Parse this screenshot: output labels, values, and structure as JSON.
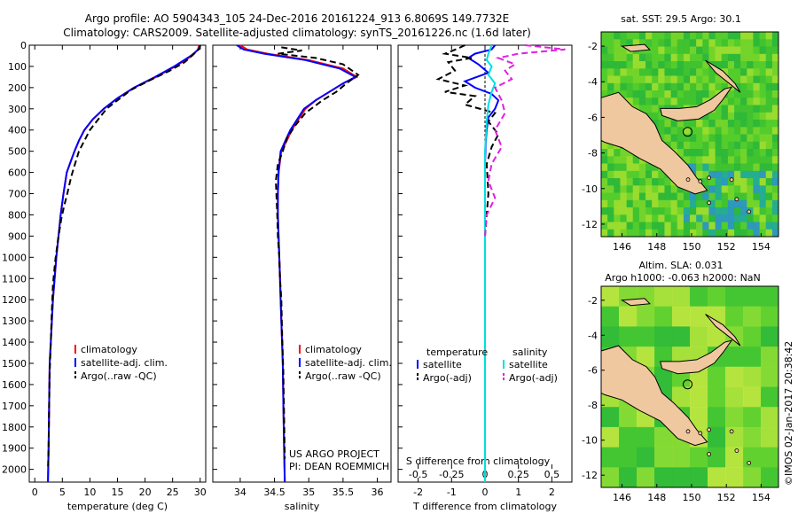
{
  "titles": {
    "line1": "Argo profile: AO 5904343_105 24-Dec-2016 20161224_913 6.8069S 149.7732E",
    "line2": "Climatology: CARS2009. Satellite-adjusted climatology: synTS_20161226.nc (1.6d later)"
  },
  "colors": {
    "climatology": "#ff0000",
    "satellite": "#0000ff",
    "argo": "#000000",
    "satellite_s": "#00e0e0",
    "argo_s": "#e020e0",
    "land": "#f0c8a0",
    "ocean": "#44cc33"
  },
  "chart_data": [
    {
      "type": "line",
      "title": "",
      "xlabel": "temperature (deg C)",
      "ylabel": "",
      "xlim": [
        -1,
        31
      ],
      "ylim": [
        2060,
        0
      ],
      "xticks": [
        0,
        5,
        10,
        15,
        20,
        25,
        30
      ],
      "yticks": [
        0,
        100,
        200,
        300,
        400,
        500,
        600,
        700,
        800,
        900,
        1000,
        1100,
        1200,
        1300,
        1400,
        1500,
        1600,
        1700,
        1800,
        1900,
        2000
      ],
      "legend": [
        "climatology",
        "satellite-adj. clim.",
        "Argo(..raw -QC)"
      ],
      "series": [
        {
          "name": "climatology",
          "x": [
            29.8,
            29.6,
            28.5,
            25.5,
            22,
            18,
            15,
            12.5,
            10.5,
            9,
            8,
            7.2,
            6.5,
            5.8,
            5.2,
            4.7,
            4.3,
            3.9,
            3.6,
            3.3,
            3.1,
            2.9,
            2.7,
            2.6,
            2.5,
            2.4
          ],
          "depth": [
            0,
            20,
            50,
            100,
            150,
            200,
            250,
            300,
            350,
            400,
            450,
            500,
            550,
            600,
            700,
            800,
            900,
            1000,
            1100,
            1200,
            1300,
            1400,
            1500,
            1700,
            1900,
            2060
          ]
        },
        {
          "name": "satellite-adj. clim.",
          "x": [
            30,
            29.7,
            28.3,
            25.3,
            21.8,
            18,
            15,
            12.5,
            10.5,
            9,
            8,
            7.2,
            6.5,
            5.8,
            5.2,
            4.7,
            4.3,
            3.9,
            3.6,
            3.3,
            3.1,
            2.9,
            2.7,
            2.6,
            2.5,
            2.4
          ],
          "depth": [
            0,
            20,
            50,
            100,
            150,
            200,
            250,
            300,
            350,
            400,
            450,
            500,
            550,
            600,
            700,
            800,
            900,
            1000,
            1100,
            1200,
            1300,
            1400,
            1500,
            1700,
            1900,
            2060
          ]
        },
        {
          "name": "Argo(..raw -QC)",
          "x": [
            30,
            29.9,
            28.9,
            27.2,
            24.5,
            20.5,
            17.5,
            15.5,
            13,
            11.5,
            10,
            9,
            8,
            7.3,
            6.6,
            5.9,
            5.3,
            4.8,
            4.2,
            3.7,
            3.3,
            3.1,
            2.9,
            2.7,
            2.6,
            2.5,
            2.4
          ],
          "depth": [
            0,
            15,
            40,
            80,
            120,
            170,
            210,
            250,
            300,
            350,
            400,
            450,
            500,
            560,
            620,
            700,
            760,
            820,
            920,
            1020,
            1130,
            1250,
            1400,
            1550,
            1700,
            1900,
            2000
          ]
        }
      ]
    },
    {
      "type": "line",
      "title": "",
      "xlabel": "salinity",
      "ylabel": "",
      "xlim": [
        33.6,
        36.2
      ],
      "ylim": [
        2060,
        0
      ],
      "xticks": [
        34,
        34.5,
        35,
        35.5,
        36
      ],
      "legend": [
        "climatology",
        "satellite-adj. clim.",
        "Argo(..raw -QC)"
      ],
      "annotations": [
        "US ARGO PROJECT",
        "PI: DEAN ROEMMICH"
      ],
      "series": [
        {
          "name": "climatology",
          "x": [
            34.0,
            34.1,
            34.4,
            35.0,
            35.5,
            35.7,
            35.5,
            35.3,
            35.1,
            34.95,
            34.85,
            34.75,
            34.68,
            34.6,
            34.56,
            34.55,
            34.55,
            34.56,
            34.57,
            34.58,
            34.59,
            34.6,
            34.62,
            34.63,
            34.64,
            34.65
          ],
          "depth": [
            0,
            20,
            40,
            70,
            110,
            150,
            180,
            220,
            260,
            300,
            350,
            400,
            450,
            500,
            600,
            700,
            800,
            900,
            1000,
            1100,
            1200,
            1300,
            1500,
            1700,
            1900,
            2060
          ]
        },
        {
          "name": "satellite-adj. clim.",
          "x": [
            33.95,
            34.05,
            34.35,
            34.95,
            35.45,
            35.68,
            35.5,
            35.3,
            35.1,
            34.93,
            34.83,
            34.73,
            34.66,
            34.59,
            34.56,
            34.55,
            34.55,
            34.56,
            34.57,
            34.58,
            34.59,
            34.6,
            34.62,
            34.63,
            34.64,
            34.65
          ],
          "depth": [
            0,
            20,
            40,
            70,
            110,
            150,
            180,
            220,
            260,
            300,
            350,
            400,
            450,
            500,
            600,
            700,
            800,
            900,
            1000,
            1100,
            1200,
            1300,
            1500,
            1700,
            1900,
            2060
          ]
        },
        {
          "name": "Argo(..raw -QC)",
          "x": [
            34.6,
            34.9,
            34.55,
            35.1,
            35.5,
            35.72,
            35.55,
            35.4,
            35.2,
            34.95,
            34.8,
            34.68,
            34.62,
            34.55,
            34.52,
            34.53,
            34.54,
            34.55,
            34.57,
            34.58,
            34.6,
            34.61,
            34.63,
            34.64,
            34.65
          ],
          "depth": [
            10,
            25,
            40,
            60,
            90,
            140,
            180,
            220,
            260,
            320,
            380,
            440,
            500,
            560,
            640,
            720,
            800,
            900,
            1000,
            1100,
            1200,
            1350,
            1550,
            1750,
            1950
          ]
        }
      ]
    },
    {
      "type": "line",
      "title": "",
      "xlabel": "T difference from climatology",
      "xlabel2": "S difference from climatology",
      "xlim": [
        -2.6,
        2.6
      ],
      "ylim": [
        2060,
        0
      ],
      "xticks": [
        -2,
        -1,
        0,
        1,
        2
      ],
      "xticks2_labels": [
        "-0.5",
        "-0.25",
        "0",
        "0.25",
        "0.5"
      ],
      "legend_groups": {
        "temperature": [
          "satellite",
          "Argo(-adj)"
        ],
        "salinity": [
          "satellite",
          "Argo(-adj)"
        ]
      },
      "series": [
        {
          "name": "temperature satellite",
          "x": [
            0.3,
            0.2,
            -0.3,
            -0.5,
            -0.2,
            0.1,
            -0.6,
            -0.3,
            0.2,
            0.4,
            0.3,
            0.1,
            0.05,
            0.02,
            0,
            0,
            0,
            0,
            0
          ],
          "depth": [
            0,
            20,
            40,
            60,
            90,
            130,
            170,
            200,
            230,
            260,
            300,
            340,
            400,
            460,
            560,
            700,
            1000,
            1500,
            2060
          ]
        },
        {
          "name": "temperature Argo(-adj)",
          "x": [
            -0.6,
            -0.8,
            -1.2,
            -0.4,
            -1.1,
            -0.9,
            -1.4,
            -0.6,
            -1.2,
            -0.3,
            -0.6,
            0.3,
            0.1,
            0.4,
            0.2,
            0.05,
            0.1,
            0,
            0,
            0
          ],
          "depth": [
            0,
            15,
            40,
            60,
            80,
            120,
            160,
            190,
            220,
            240,
            280,
            320,
            360,
            420,
            480,
            560,
            700,
            900,
            1400,
            2000
          ]
        },
        {
          "name": "salinity satellite",
          "x": [
            0.2,
            0.15,
            0.1,
            0.05,
            0.2,
            0.1,
            0.3,
            0.2,
            0.1,
            0.05,
            0,
            0,
            0,
            0
          ],
          "depth": [
            0,
            20,
            40,
            70,
            100,
            140,
            180,
            220,
            280,
            360,
            500,
            800,
            1400,
            2060
          ]
        },
        {
          "name": "salinity Argo(-adj)",
          "x": [
            1.2,
            2.4,
            1.0,
            0.4,
            0.9,
            0.6,
            0.8,
            0.3,
            0.5,
            0.6,
            0.3,
            0.5,
            0.2,
            0.1,
            0.3,
            0.05,
            0
          ],
          "depth": [
            0,
            20,
            40,
            60,
            90,
            120,
            160,
            200,
            260,
            320,
            400,
            480,
            560,
            640,
            720,
            800,
            900
          ]
        }
      ]
    },
    {
      "type": "heatmap",
      "title": "sat. SST: 29.5  Argo: 30.1",
      "xlim": [
        144.8,
        155
      ],
      "ylim": [
        -12.7,
        -1.2
      ],
      "xticks": [
        146,
        148,
        150,
        152,
        154
      ],
      "yticks": [
        -2,
        -4,
        -6,
        -8,
        -10,
        -12
      ],
      "marker": {
        "lon": 149.77,
        "lat": -6.81
      }
    },
    {
      "type": "heatmap",
      "title": "Altim. SLA: 0.031",
      "subtitle": "Argo h1000: -0.063 h2000: NaN",
      "xlim": [
        144.8,
        155
      ],
      "ylim": [
        -12.7,
        -1.2
      ],
      "xticks": [
        146,
        148,
        150,
        152,
        154
      ],
      "yticks": [
        -2,
        -4,
        -6,
        -8,
        -10,
        -12
      ],
      "marker": {
        "lon": 149.77,
        "lat": -6.81
      }
    }
  ],
  "side_label": "©IMOS 02-Jan-2017 20:38:42"
}
